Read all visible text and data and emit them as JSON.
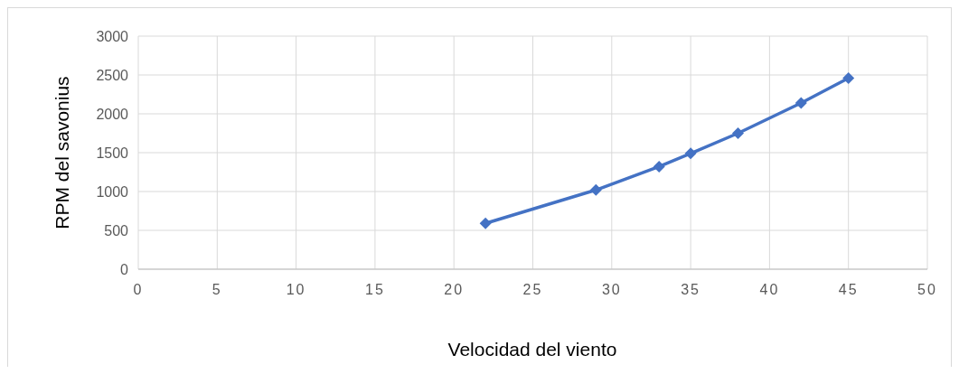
{
  "chart_data": {
    "type": "line",
    "xlabel": "Velocidad del viento",
    "ylabel": "RPM del savonius",
    "x": [
      22,
      29,
      33,
      35,
      38,
      42,
      45
    ],
    "series": [
      {
        "color": "#4472c4",
        "values": [
          590,
          1020,
          1320,
          1490,
          1750,
          2140,
          2460
        ]
      }
    ],
    "xlim": [
      0,
      50
    ],
    "xticks": [
      0,
      5,
      10,
      15,
      20,
      25,
      30,
      35,
      40,
      45,
      50
    ],
    "ylim": [
      0,
      3000
    ],
    "yticks": [
      0,
      500,
      1000,
      1500,
      2000,
      2500,
      3000
    ],
    "grid": true,
    "marker": "diamond",
    "line_style": "solid"
  }
}
